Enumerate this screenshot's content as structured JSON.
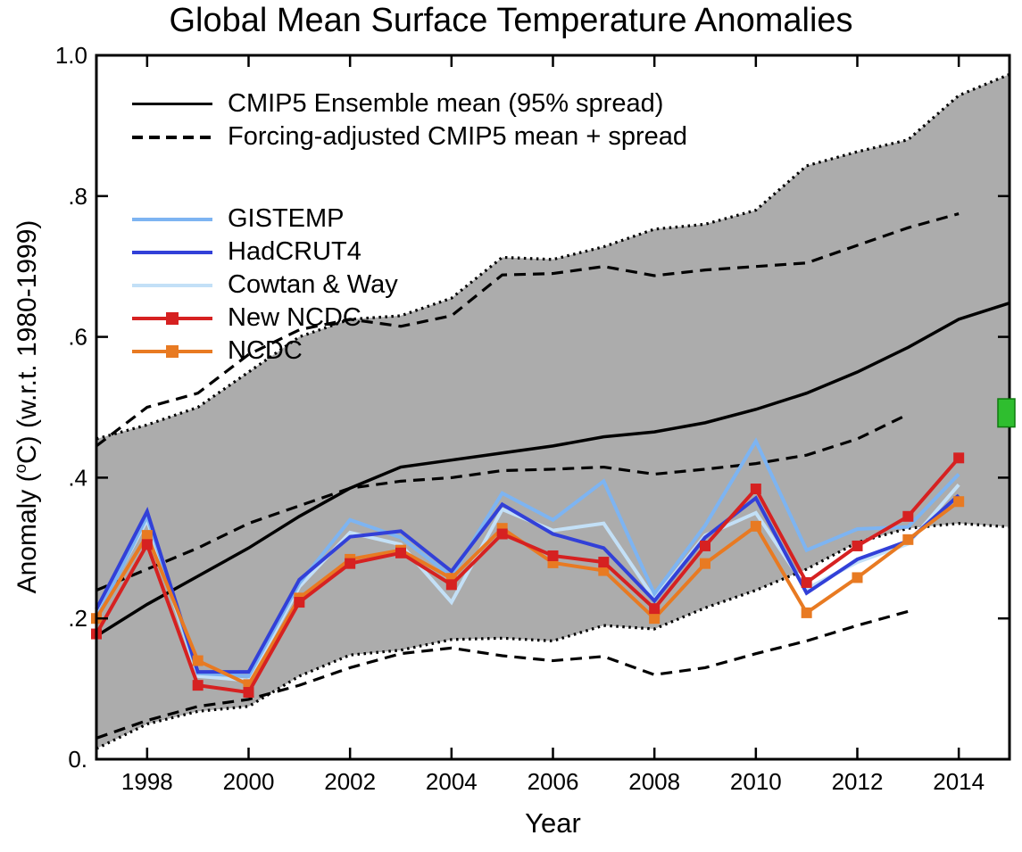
{
  "title": "Global Mean Surface Temperature Anomalies",
  "x_axis": {
    "label": "Year",
    "range": [
      1997,
      2015
    ],
    "tick_years": [
      1998,
      2000,
      2002,
      2004,
      2006,
      2008,
      2010,
      2012,
      2014
    ]
  },
  "y_axis": {
    "label_prefix": "Anomaly (",
    "label_sup": "o",
    "label_suffix": "C) (w.r.t. 1980-1999)",
    "range": [
      0,
      1
    ],
    "tick_values": [
      0,
      0.2,
      0.4,
      0.6,
      0.8,
      1.0
    ],
    "tick_labels": [
      "0.",
      ".2",
      ".4",
      ".6",
      ".8",
      "1.0"
    ]
  },
  "chart_data": {
    "type": "line",
    "title": "Global Mean Surface Temperature Anomalies",
    "xlabel": "Year",
    "ylabel": "Anomaly (°C) (w.r.t. 1980-1999)",
    "xlim": [
      1997,
      2015
    ],
    "ylim": [
      0,
      1
    ],
    "grid": false,
    "legend_position": "upper-left",
    "band_color": "#ACACAC",
    "model_x": [
      1997,
      1998,
      1999,
      2000,
      2001,
      2002,
      2003,
      2004,
      2005,
      2006,
      2007,
      2008,
      2009,
      2010,
      2011,
      2012,
      2013,
      2014,
      2015
    ],
    "model": {
      "ensemble_mean_label": "CMIP5 Ensemble mean (95% spread)",
      "forcing_adjusted_label": "Forcing-adjusted CMIP5 mean + spread",
      "ensemble_mean": [
        0.175,
        0.22,
        0.26,
        0.3,
        0.345,
        0.385,
        0.415,
        0.425,
        0.435,
        0.445,
        0.458,
        0.465,
        0.478,
        0.497,
        0.52,
        0.55,
        0.585,
        0.625,
        0.648
      ],
      "spread_upper": [
        0.455,
        0.475,
        0.5,
        0.55,
        0.6,
        0.625,
        0.63,
        0.655,
        0.713,
        0.71,
        0.728,
        0.753,
        0.76,
        0.78,
        0.843,
        0.863,
        0.88,
        0.943,
        0.973
      ],
      "spread_lower": [
        0.015,
        0.05,
        0.068,
        0.075,
        0.118,
        0.148,
        0.155,
        0.17,
        0.172,
        0.168,
        0.19,
        0.185,
        0.215,
        0.24,
        0.27,
        0.308,
        0.328,
        0.335,
        0.33
      ],
      "forcing_mean_x": [
        1997,
        1998,
        1999,
        2000,
        2001,
        2002,
        2003,
        2004,
        2005,
        2006,
        2007,
        2008,
        2009,
        2010,
        2011,
        2012,
        2013
      ],
      "forcing_mean": [
        0.24,
        0.27,
        0.3,
        0.335,
        0.36,
        0.385,
        0.395,
        0.4,
        0.41,
        0.412,
        0.415,
        0.405,
        0.412,
        0.42,
        0.432,
        0.455,
        0.49
      ],
      "forcing_upper_x": [
        1997,
        1998,
        1999,
        2000,
        2001,
        2002,
        2003,
        2004,
        2005,
        2006,
        2007,
        2008,
        2009,
        2010,
        2011,
        2012,
        2013,
        2014
      ],
      "forcing_upper": [
        0.445,
        0.5,
        0.52,
        0.575,
        0.61,
        0.625,
        0.615,
        0.63,
        0.688,
        0.69,
        0.7,
        0.687,
        0.695,
        0.7,
        0.705,
        0.73,
        0.755,
        0.775
      ],
      "forcing_lower_x": [
        1997,
        1998,
        1999,
        2000,
        2001,
        2002,
        2003,
        2004,
        2005,
        2006,
        2007,
        2008,
        2009,
        2010,
        2011,
        2012,
        2013
      ],
      "forcing_lower": [
        0.03,
        0.055,
        0.075,
        0.085,
        0.105,
        0.13,
        0.15,
        0.158,
        0.147,
        0.14,
        0.146,
        0.12,
        0.13,
        0.15,
        0.168,
        0.19,
        0.21
      ]
    },
    "x": [
      1997,
      1998,
      1999,
      2000,
      2001,
      2002,
      2003,
      2004,
      2005,
      2006,
      2007,
      2008,
      2009,
      2010,
      2011,
      2012,
      2013,
      2014
    ],
    "series": [
      {
        "name": "GISTEMP",
        "color": "#7DB4F2",
        "marker": "none",
        "values": [
          0.2,
          0.345,
          0.122,
          0.118,
          0.25,
          0.34,
          0.315,
          0.26,
          0.378,
          0.34,
          0.395,
          0.235,
          0.332,
          0.452,
          0.297,
          0.327,
          0.33,
          0.405
        ]
      },
      {
        "name": "HadCRUT4",
        "color": "#3240D8",
        "marker": "none",
        "values": [
          0.213,
          0.352,
          0.124,
          0.124,
          0.255,
          0.316,
          0.324,
          0.267,
          0.362,
          0.32,
          0.3,
          0.225,
          0.315,
          0.371,
          0.236,
          0.284,
          0.31,
          0.375
        ]
      },
      {
        "name": "Cowtan & Way",
        "color": "#C3E0F7",
        "marker": "none",
        "values": [
          0.205,
          0.34,
          0.118,
          0.112,
          0.245,
          0.322,
          0.305,
          0.223,
          0.355,
          0.325,
          0.335,
          0.228,
          0.318,
          0.35,
          0.242,
          0.28,
          0.306,
          0.39
        ]
      },
      {
        "name": "New NCDC",
        "color": "#D62121",
        "marker": "square",
        "values": [
          0.178,
          0.305,
          0.105,
          0.095,
          0.223,
          0.278,
          0.293,
          0.248,
          0.32,
          0.289,
          0.28,
          0.214,
          0.303,
          0.384,
          0.251,
          0.303,
          0.345,
          0.428
        ]
      },
      {
        "name": "NCDC",
        "color": "#E87A22",
        "marker": "square",
        "values": [
          0.2,
          0.318,
          0.14,
          0.106,
          0.229,
          0.284,
          0.297,
          0.257,
          0.328,
          0.279,
          0.268,
          0.2,
          0.278,
          0.331,
          0.208,
          0.258,
          0.312,
          0.366
        ]
      }
    ],
    "draw_order": [
      2,
      0,
      1,
      4,
      3
    ],
    "green_marker": {
      "x": 2015,
      "y_from": 0.472,
      "y_to": 0.512,
      "color": "#2FBE2F",
      "edge": "#0E7A0E"
    }
  }
}
